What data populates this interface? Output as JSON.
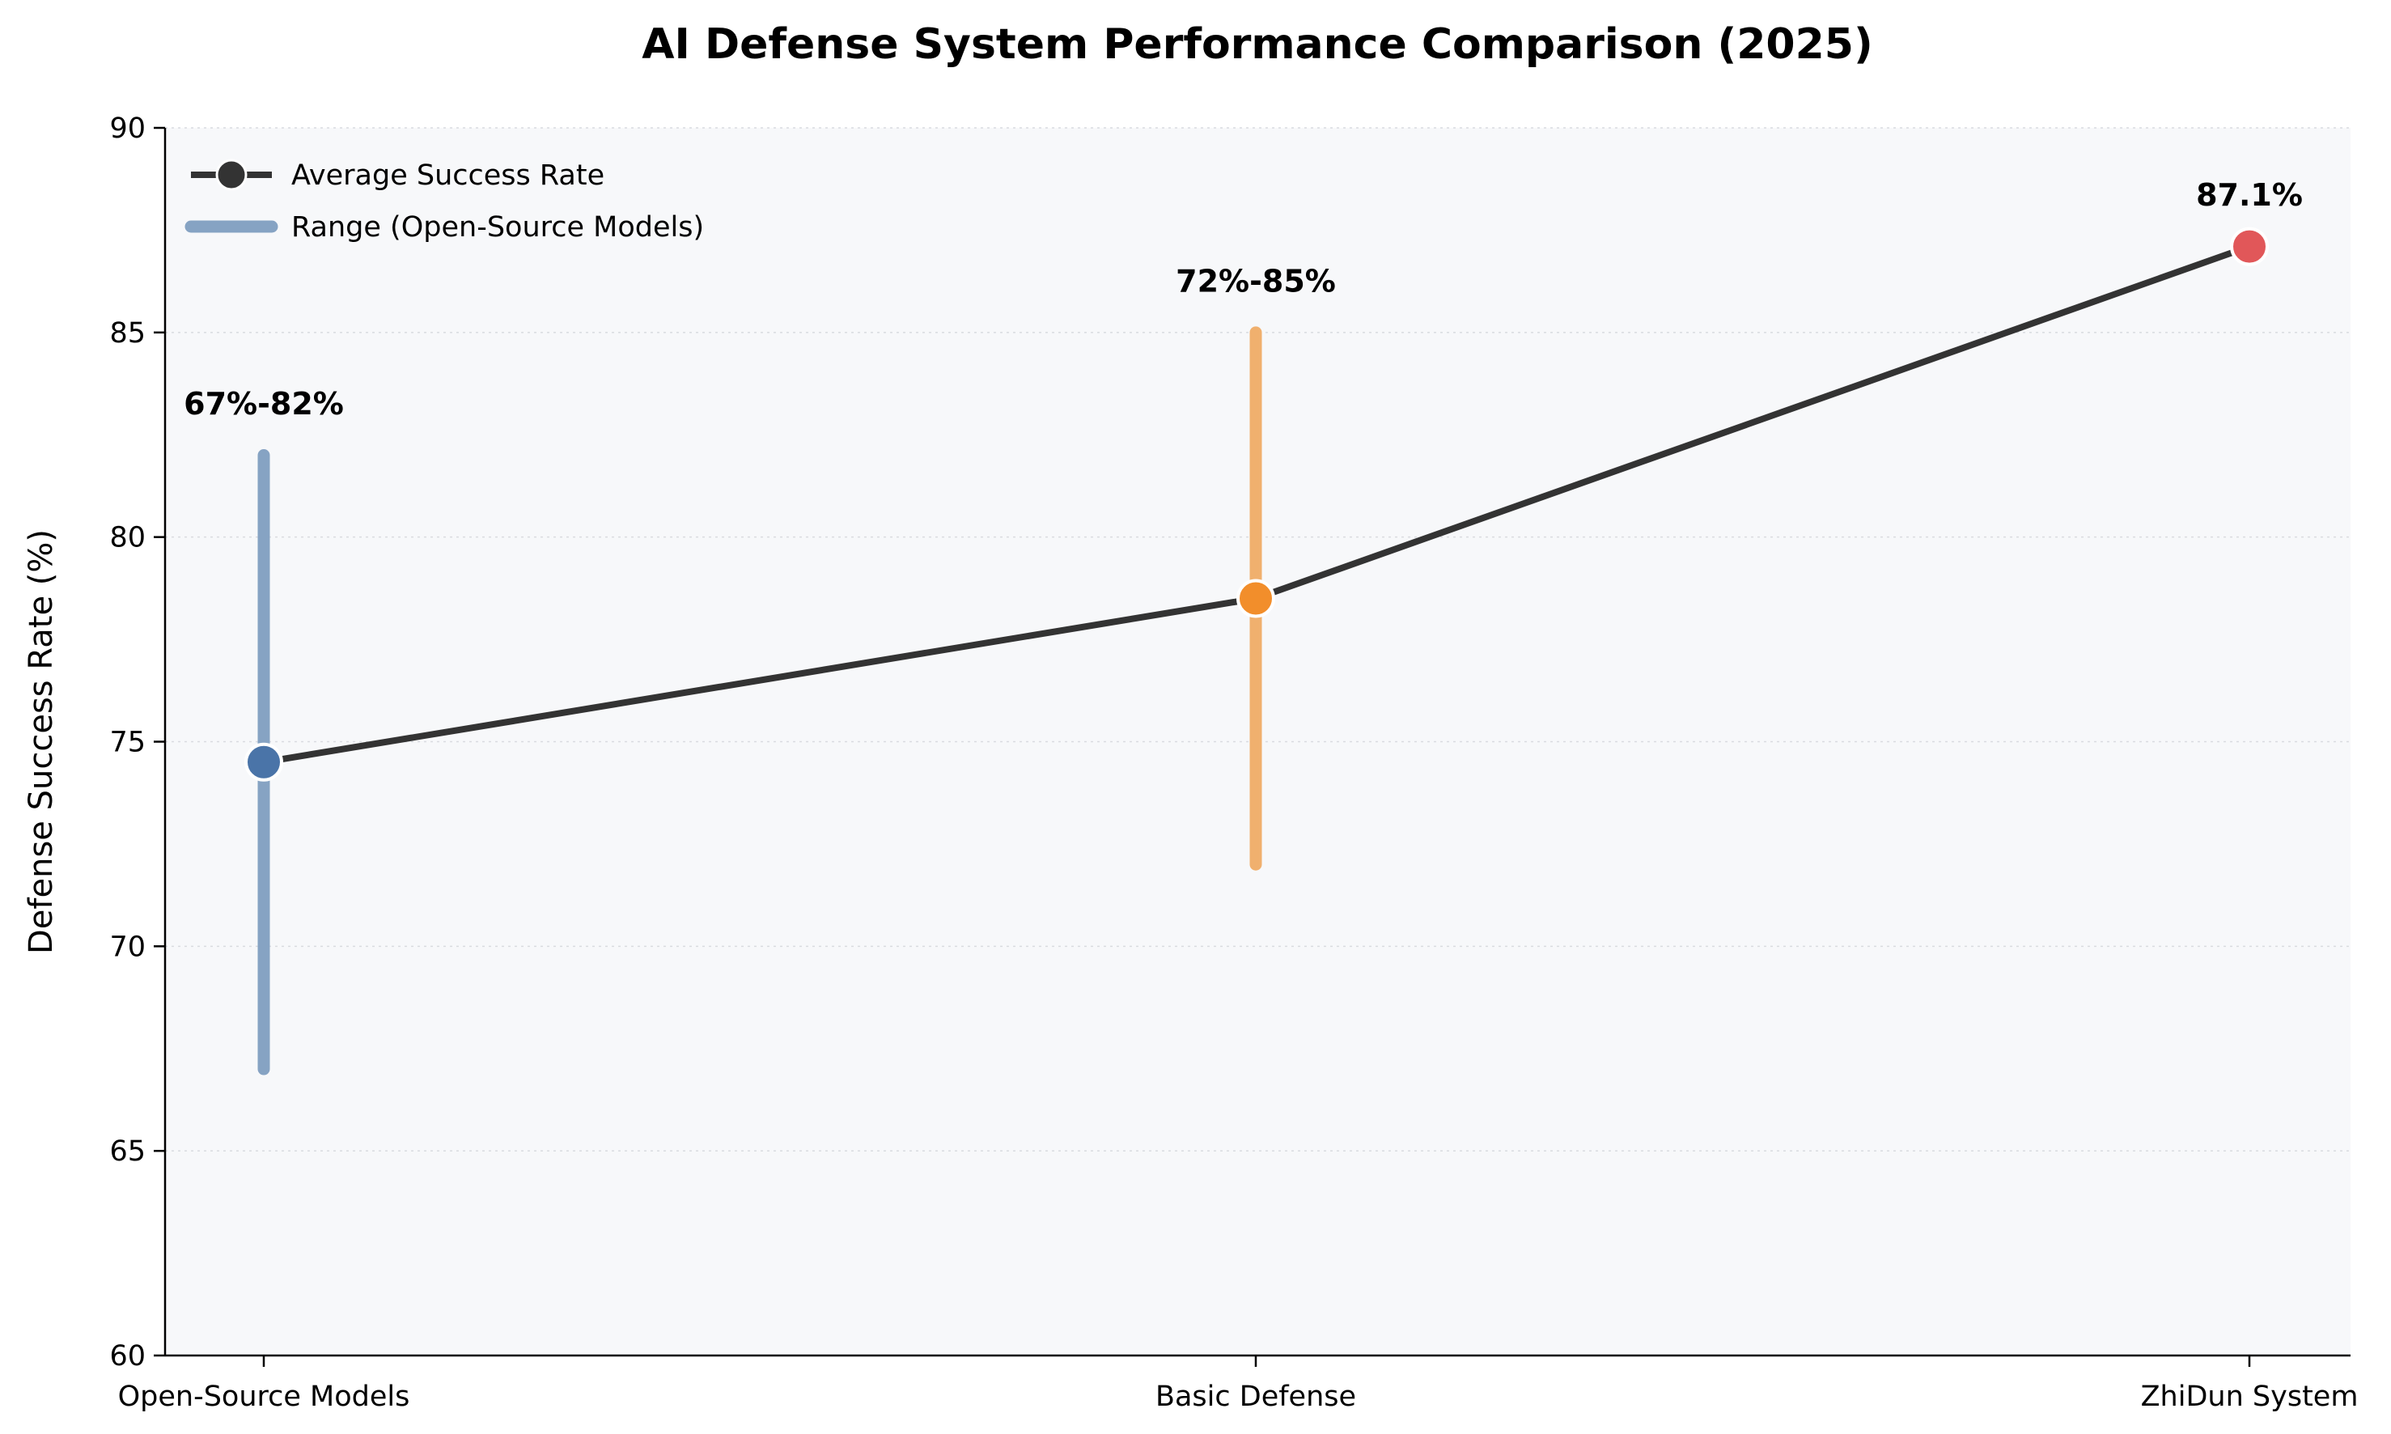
{
  "chart_data": {
    "type": "line",
    "title": "AI Defense System Performance Comparison (2025)",
    "xlabel": "",
    "ylabel": "Defense Success Rate (%)",
    "ylim": [
      60,
      90
    ],
    "yticks": [
      60,
      65,
      70,
      75,
      80,
      85,
      90
    ],
    "categories": [
      "Open-Source Models",
      "Basic Defense",
      "ZhiDun System"
    ],
    "series": [
      {
        "name": "Average Success Rate",
        "values": [
          74.5,
          78.5,
          87.1
        ],
        "color": "#333333",
        "marker_colors": [
          "#4a74a8",
          "#f28e2b",
          "#e15759"
        ]
      }
    ],
    "ranges": {
      "name": "Range (Open-Source Models)",
      "items": [
        {
          "category": "Open-Source Models",
          "low": 67,
          "high": 82,
          "color": "#86a3c3"
        },
        {
          "category": "Basic Defense",
          "low": 72,
          "high": 85,
          "color": "#f0b06e"
        }
      ]
    },
    "annotations": [
      {
        "category": "Open-Source Models",
        "text": "67%-82%",
        "y": 83
      },
      {
        "category": "Basic Defense",
        "text": "72%-85%",
        "y": 86
      },
      {
        "category": "ZhiDun System",
        "text": "87.1%",
        "y": 88.1
      }
    ],
    "grid": true,
    "legend_position": "top-left",
    "background_color": "#f7f8fa"
  }
}
